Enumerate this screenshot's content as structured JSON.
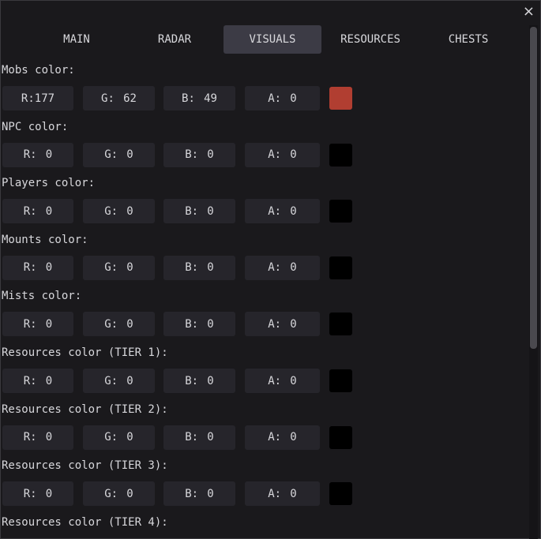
{
  "tabs": [
    "MAIN",
    "RADAR",
    "VISUALS",
    "RESOURCES",
    "CHESTS"
  ],
  "active_tab": 2,
  "channels": [
    "R:",
    "G:",
    "B:",
    "A:"
  ],
  "sections": [
    {
      "label": "Mobs color:",
      "values": [
        177,
        62,
        49,
        0
      ]
    },
    {
      "label": "NPC color:",
      "values": [
        0,
        0,
        0,
        0
      ]
    },
    {
      "label": "Players color:",
      "values": [
        0,
        0,
        0,
        0
      ]
    },
    {
      "label": "Mounts color:",
      "values": [
        0,
        0,
        0,
        0
      ]
    },
    {
      "label": "Mists color:",
      "values": [
        0,
        0,
        0,
        0
      ]
    },
    {
      "label": "Resources color (TIER 1):",
      "values": [
        0,
        0,
        0,
        0
      ]
    },
    {
      "label": "Resources color (TIER 2):",
      "values": [
        0,
        0,
        0,
        0
      ]
    },
    {
      "label": "Resources color (TIER 3):",
      "values": [
        0,
        0,
        0,
        0
      ]
    },
    {
      "label": "Resources color (TIER 4):"
    }
  ]
}
